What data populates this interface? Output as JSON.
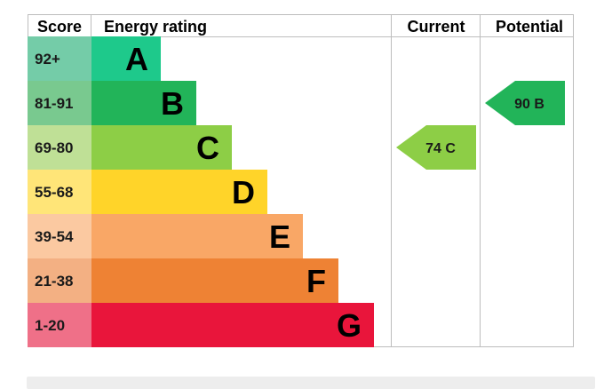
{
  "chart_data": {
    "type": "table",
    "headers": {
      "score": "Score",
      "rating": "Energy rating",
      "current": "Current",
      "potential": "Potential"
    },
    "bands": [
      {
        "letter": "A",
        "score_range": "92+",
        "min": 92,
        "max": 100,
        "color": "#1ec98b",
        "score_bg": "#74cca8"
      },
      {
        "letter": "B",
        "score_range": "81-91",
        "min": 81,
        "max": 91,
        "color": "#22b459",
        "score_bg": "#79c98f"
      },
      {
        "letter": "C",
        "score_range": "69-80",
        "min": 69,
        "max": 80,
        "color": "#8dce46",
        "score_bg": "#bfe096"
      },
      {
        "letter": "D",
        "score_range": "55-68",
        "min": 55,
        "max": 68,
        "color": "#ffd429",
        "score_bg": "#ffe578"
      },
      {
        "letter": "E",
        "score_range": "39-54",
        "min": 39,
        "max": 54,
        "color": "#f9a766",
        "score_bg": "#fbc9a1"
      },
      {
        "letter": "F",
        "score_range": "21-38",
        "min": 21,
        "max": 38,
        "color": "#ee8234",
        "score_bg": "#f3b083"
      },
      {
        "letter": "G",
        "score_range": "1-20",
        "min": 1,
        "max": 20,
        "color": "#e9153b",
        "score_bg": "#ef7088"
      }
    ],
    "current": {
      "value": 74,
      "band": "C",
      "label": "74 C",
      "color": "#8dce46"
    },
    "potential": {
      "value": 90,
      "band": "B",
      "label": "90 B",
      "color": "#22b459"
    }
  }
}
